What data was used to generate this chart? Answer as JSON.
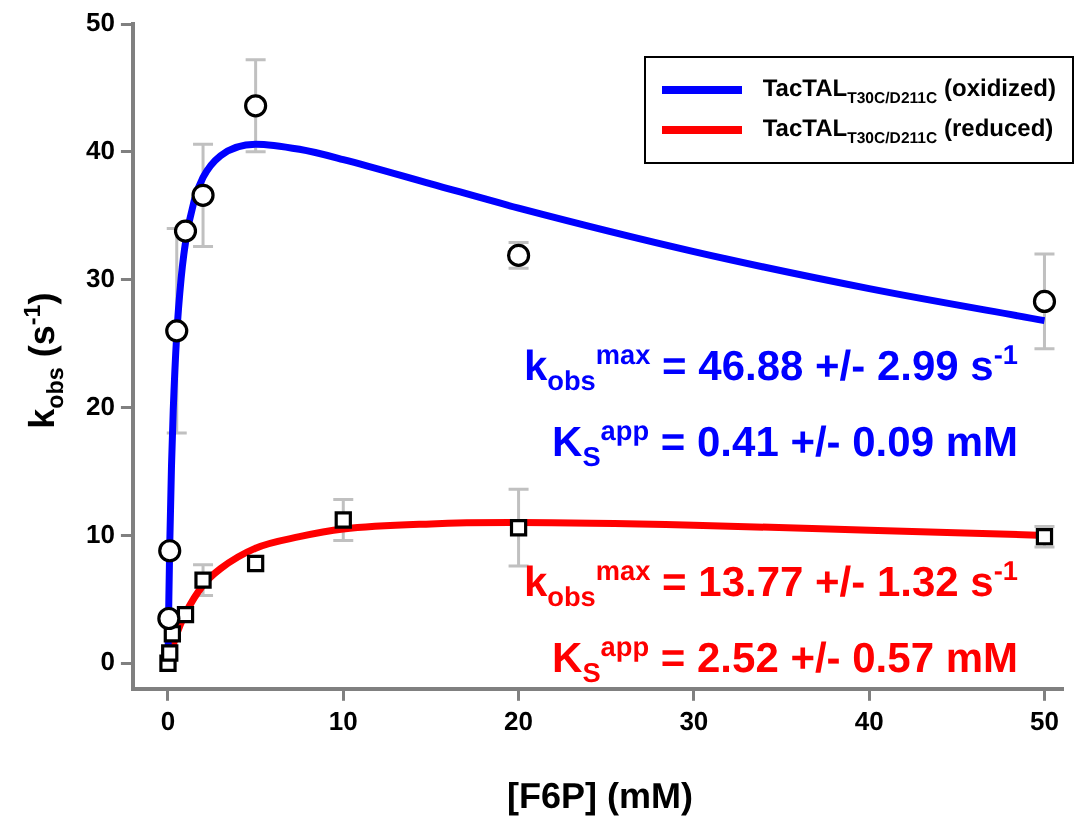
{
  "chart_data": {
    "type": "scatter",
    "xlabel": "[F6P] (mM)",
    "ylabel": "k$_{obs}$ (s$^{-1}$)",
    "xlim": [
      -2,
      51
    ],
    "xticks": [
      0,
      10,
      20,
      30,
      40,
      50
    ],
    "ylim": [
      -2,
      50
    ],
    "yticks": [
      0,
      10,
      20,
      30,
      40,
      50
    ],
    "grid": false,
    "legend": "top right",
    "series": [
      {
        "type": "line",
        "name": "TacTAL$_{T30C/D211C}$ (oxidized)",
        "color": "#0000ff",
        "marker": "none",
        "x": [
          0,
          0.05,
          0.1,
          0.2,
          0.3,
          0.5,
          0.75,
          1,
          1.5,
          2,
          3,
          5,
          7.5,
          10,
          15,
          20,
          30,
          40,
          50
        ],
        "values": [
          0,
          5.1,
          9.2,
          15.4,
          19.8,
          25.7,
          30.1,
          32.9,
          36.2,
          38,
          39.7,
          40.6,
          40.2,
          39.4,
          37.5,
          35.6,
          32.2,
          29.3,
          26.8
        ]
      },
      {
        "type": "line",
        "name": "TacTAL$_{T30C/D211C}$ (reduced)",
        "color": "#ff0000",
        "marker": "none",
        "x": [
          0,
          0.25,
          0.5,
          1,
          2,
          3,
          5,
          7.5,
          10,
          15,
          20,
          30,
          40,
          50
        ],
        "values": [
          0,
          1.2,
          2.3,
          3.9,
          6.1,
          7.4,
          9,
          9.9,
          10.5,
          10.9,
          11,
          10.8,
          10.4,
          10
        ]
      },
      {
        "color": "#000000",
        "marker": "circle",
        "x": [
          0.05,
          0.1,
          0.5,
          1,
          2,
          5,
          20,
          50
        ],
        "values": [
          3.5,
          8.8,
          26,
          33.8,
          36.6,
          43.6,
          31.9,
          28.3
        ],
        "errors": [
          null,
          null,
          8,
          null,
          4,
          3.6,
          1,
          3.7
        ]
      },
      {
        "color": "#000000",
        "marker": "square",
        "x": [
          0,
          0.1,
          0.25,
          1,
          2,
          5,
          10,
          20,
          50
        ],
        "values": [
          0,
          0.8,
          2.3,
          3.8,
          6.5,
          7.8,
          11.2,
          10.6,
          9.9
        ],
        "errors": [
          null,
          null,
          null,
          null,
          1.2,
          null,
          1.6,
          3,
          0.8
        ]
      }
    ],
    "annotations": [
      "k$_{obs}$$^{max}$ = 46.88 +/- 2.99 s$^{-1}$",
      "K$_{S}$$^{app}$ = 0.41 +/- 0.09 mM",
      "k$_{obs}$$^{max}$ = 13.77 +/- 1.32 s$^{-1}$",
      "K$_{S}$$^{app}$ = 2.52 +/- 0.57 mM"
    ]
  }
}
